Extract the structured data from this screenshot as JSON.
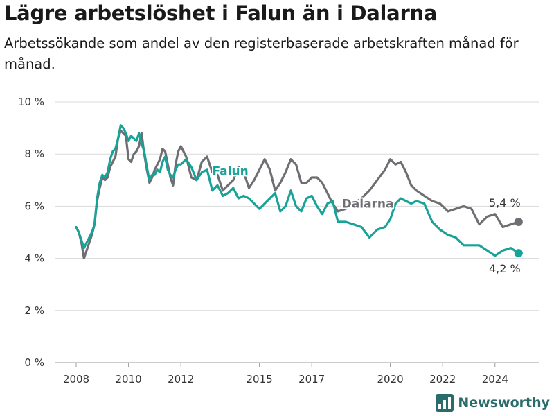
{
  "header": {
    "title": "Lägre arbetslöshet i Falun än i Dalarna",
    "subtitle": "Arbetssökande som andel av den registerbaserade arbetskraften månad för månad."
  },
  "brand": {
    "name": "Newsworthy",
    "icon": "bar-chart-logo-icon"
  },
  "colors": {
    "falun": "#17a398",
    "dalarna": "#6e6e73",
    "grid": "#d9d9d9",
    "brand": "#2a6b6b"
  },
  "chart_data": {
    "type": "line",
    "title": "Lägre arbetslöshet i Falun än i Dalarna",
    "subtitle": "Arbetssökande som andel av den registerbaserade arbetskraften månad för månad.",
    "xlabel": "",
    "ylabel": "",
    "xlim": [
      2007.5,
      2025.5
    ],
    "ylim": [
      0,
      10
    ],
    "grid": true,
    "y_ticks": [
      0,
      2,
      4,
      6,
      8,
      10
    ],
    "y_tick_labels": [
      "0 %",
      "2 %",
      "4 %",
      "6 %",
      "8 %",
      "10 %"
    ],
    "x_ticks": [
      2008,
      2010,
      2012,
      2015,
      2017,
      2020,
      2022,
      2024
    ],
    "x_tick_labels": [
      "2008",
      "2010",
      "2012",
      "2015",
      "2017",
      "2020",
      "2022",
      "2024"
    ],
    "series": [
      {
        "name": "Falun",
        "key": "falun",
        "end_label": "4,2 %",
        "x": [
          2008.0,
          2008.1,
          2008.2,
          2008.3,
          2008.4,
          2008.5,
          2008.6,
          2008.7,
          2008.8,
          2008.9,
          2009.0,
          2009.1,
          2009.2,
          2009.3,
          2009.4,
          2009.5,
          2009.6,
          2009.7,
          2009.8,
          2009.9,
          2010.0,
          2010.1,
          2010.2,
          2010.3,
          2010.4,
          2010.5,
          2010.6,
          2010.7,
          2010.8,
          2010.9,
          2011.0,
          2011.1,
          2011.2,
          2011.3,
          2011.4,
          2011.5,
          2011.6,
          2011.7,
          2011.8,
          2011.9,
          2012.0,
          2012.2,
          2012.4,
          2012.6,
          2012.8,
          2013.0,
          2013.2,
          2013.4,
          2013.6,
          2013.8,
          2014.0,
          2014.2,
          2014.4,
          2014.6,
          2014.8,
          2015.0,
          2015.2,
          2015.4,
          2015.6,
          2015.8,
          2016.0,
          2016.2,
          2016.4,
          2016.6,
          2016.8,
          2017.0,
          2017.2,
          2017.4,
          2017.6,
          2017.8,
          2018.0,
          2018.3,
          2018.6,
          2018.9,
          2019.2,
          2019.5,
          2019.8,
          2020.0,
          2020.2,
          2020.4,
          2020.6,
          2020.8,
          2021.0,
          2021.3,
          2021.6,
          2021.9,
          2022.2,
          2022.5,
          2022.8,
          2023.1,
          2023.4,
          2023.7,
          2024.0,
          2024.3,
          2024.6,
          2024.9
        ],
        "values": [
          5.2,
          5.0,
          4.7,
          4.4,
          4.6,
          4.8,
          5.0,
          5.3,
          6.3,
          6.9,
          7.2,
          7.1,
          7.3,
          7.8,
          8.1,
          8.2,
          8.6,
          9.1,
          9.0,
          8.8,
          8.5,
          8.7,
          8.6,
          8.5,
          8.8,
          8.4,
          8.1,
          7.5,
          7.0,
          7.2,
          7.2,
          7.4,
          7.3,
          7.7,
          7.9,
          7.4,
          7.2,
          7.1,
          7.4,
          7.6,
          7.6,
          7.8,
          7.5,
          7.0,
          7.3,
          7.4,
          6.6,
          6.8,
          6.4,
          6.5,
          6.7,
          6.3,
          6.4,
          6.3,
          6.1,
          5.9,
          6.1,
          6.3,
          6.5,
          5.8,
          6.0,
          6.6,
          6.0,
          5.8,
          6.3,
          6.4,
          6.0,
          5.7,
          6.1,
          6.2,
          5.4,
          5.4,
          5.3,
          5.2,
          4.8,
          5.1,
          5.2,
          5.5,
          6.1,
          6.3,
          6.2,
          6.1,
          6.2,
          6.1,
          5.4,
          5.1,
          4.9,
          4.8,
          4.5,
          4.5,
          4.5,
          4.3,
          4.1,
          4.3,
          4.4,
          4.2
        ]
      },
      {
        "name": "Dalarna",
        "key": "dalarna",
        "end_label": "5,4 %",
        "x": [
          2008.0,
          2008.1,
          2008.2,
          2008.3,
          2008.4,
          2008.5,
          2008.6,
          2008.7,
          2008.8,
          2008.9,
          2009.0,
          2009.1,
          2009.2,
          2009.3,
          2009.4,
          2009.5,
          2009.6,
          2009.7,
          2009.8,
          2009.9,
          2010.0,
          2010.1,
          2010.2,
          2010.3,
          2010.4,
          2010.5,
          2010.6,
          2010.7,
          2010.8,
          2010.9,
          2011.0,
          2011.1,
          2011.2,
          2011.3,
          2011.4,
          2011.5,
          2011.6,
          2011.7,
          2011.8,
          2011.9,
          2012.0,
          2012.2,
          2012.4,
          2012.6,
          2012.8,
          2013.0,
          2013.2,
          2013.4,
          2013.6,
          2013.8,
          2014.0,
          2014.2,
          2014.4,
          2014.6,
          2014.8,
          2015.0,
          2015.2,
          2015.4,
          2015.6,
          2015.8,
          2016.0,
          2016.2,
          2016.4,
          2016.6,
          2016.8,
          2017.0,
          2017.2,
          2017.4,
          2017.6,
          2017.8,
          2018.0,
          2018.3,
          2018.6,
          2018.9,
          2019.2,
          2019.5,
          2019.8,
          2020.0,
          2020.2,
          2020.4,
          2020.6,
          2020.8,
          2021.0,
          2021.3,
          2021.6,
          2021.9,
          2022.2,
          2022.5,
          2022.8,
          2023.1,
          2023.4,
          2023.7,
          2024.0,
          2024.3,
          2024.6,
          2024.9
        ],
        "values": [
          5.2,
          5.0,
          4.6,
          4.0,
          4.3,
          4.6,
          4.9,
          5.3,
          6.2,
          6.7,
          7.1,
          7.0,
          7.1,
          7.5,
          7.7,
          7.9,
          8.6,
          8.9,
          8.8,
          8.7,
          7.8,
          7.7,
          8.0,
          8.1,
          8.3,
          8.8,
          8.0,
          7.4,
          6.9,
          7.1,
          7.4,
          7.6,
          7.8,
          8.2,
          8.1,
          7.6,
          7.1,
          6.8,
          7.6,
          8.1,
          8.3,
          7.9,
          7.1,
          7.0,
          7.7,
          7.9,
          7.3,
          7.2,
          6.6,
          6.8,
          7.0,
          7.5,
          7.3,
          6.7,
          7.0,
          7.4,
          7.8,
          7.4,
          6.6,
          6.9,
          7.3,
          7.8,
          7.6,
          6.9,
          6.9,
          7.1,
          7.1,
          6.9,
          6.5,
          6.1,
          5.8,
          5.9,
          6.1,
          6.3,
          6.6,
          7.0,
          7.4,
          7.8,
          7.6,
          7.7,
          7.3,
          6.8,
          6.6,
          6.4,
          6.2,
          6.1,
          5.8,
          5.9,
          6.0,
          5.9,
          5.3,
          5.6,
          5.7,
          5.2,
          5.3,
          5.4
        ]
      }
    ]
  }
}
